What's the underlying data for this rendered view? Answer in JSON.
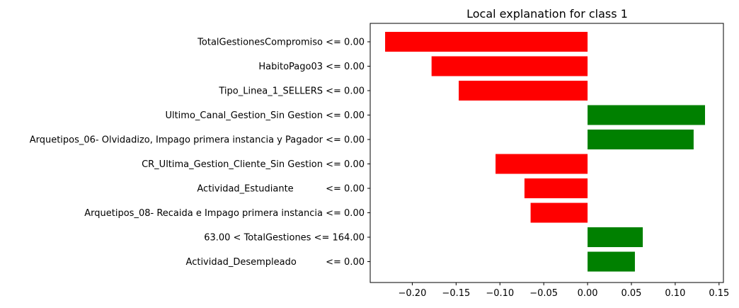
{
  "chart_data": {
    "type": "bar",
    "orientation": "horizontal",
    "title": "Local explanation for class 1",
    "xlabel": "",
    "ylabel": "",
    "categories": [
      "TotalGestionesCompromiso <= 0.00",
      "HabitoPago03 <= 0.00",
      "Tipo_Linea_1_SELLERS <= 0.00",
      "Ultimo_Canal_Gestion_Sin Gestion <= 0.00",
      "Arquetipos_06- Olvidadizo, Impago primera instancia y Pagador <= 0.00",
      "CR_Ultima_Gestion_Cliente_Sin Gestion <= 0.00",
      "Actividad_Estudiante           <= 0.00",
      "Arquetipos_08- Recaida e Impago primera instancia <= 0.00",
      "63.00 < TotalGestiones <= 164.00",
      "Actividad_Desempleado          <= 0.00"
    ],
    "values": [
      -0.231,
      -0.178,
      -0.147,
      0.134,
      0.121,
      -0.105,
      -0.072,
      -0.065,
      0.063,
      0.054
    ],
    "xlim": [
      -0.248,
      0.155
    ],
    "xticks": [
      -0.2,
      -0.15,
      -0.1,
      -0.05,
      0.0,
      0.05,
      0.1,
      0.15
    ],
    "xtick_labels": [
      "−0.20",
      "−0.15",
      "−0.10",
      "−0.05",
      "0.00",
      "0.05",
      "0.10",
      "0.15"
    ],
    "colors": {
      "positive": "#008000",
      "negative": "#ff0000"
    },
    "grid": false,
    "legend": "none"
  }
}
